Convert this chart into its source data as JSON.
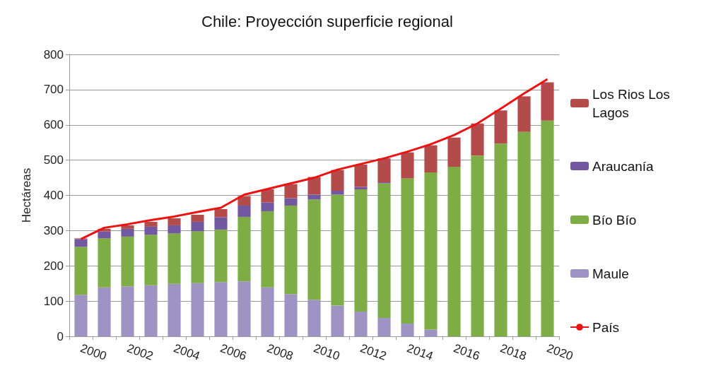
{
  "chart_data": {
    "type": "bar",
    "title": "Chile: Proyección superficie regional",
    "ylabel": "Hectáreas",
    "categories": [
      "2000",
      null,
      "2002",
      null,
      "2004",
      null,
      "2006",
      null,
      "2008",
      null,
      "2010",
      null,
      "2012",
      null,
      "2014",
      null,
      "2016",
      null,
      "2018",
      null,
      "2020"
    ],
    "stacked": true,
    "ylim": [
      0,
      800
    ],
    "yticks": [
      0,
      100,
      200,
      300,
      400,
      500,
      600,
      700,
      800
    ],
    "grid": "y",
    "legend": "right",
    "series": [
      {
        "name": "Maule",
        "color": "#9f93c4",
        "values": [
          118,
          139,
          142,
          145,
          149,
          151,
          154,
          156,
          139,
          120,
          104,
          87,
          70,
          52,
          36,
          19,
          0,
          0,
          0,
          0,
          0
        ]
      },
      {
        "name": "Bío Bío",
        "color": "#7fad45",
        "values": [
          136,
          139,
          141,
          143,
          143,
          147,
          149,
          183,
          216,
          251,
          284,
          315,
          347,
          382,
          412,
          446,
          481,
          513,
          547,
          580,
          612
        ]
      },
      {
        "name": "Araucanía",
        "color": "#7158a0",
        "values": [
          22,
          20,
          22,
          23,
          23,
          27,
          35,
          32,
          25,
          21,
          14,
          11,
          7,
          3,
          0,
          0,
          0,
          0,
          0,
          0,
          0
        ]
      },
      {
        "name": "Los Rios Los Lagos",
        "color": "#b34b4a",
        "values": [
          2,
          7,
          10,
          14,
          20,
          20,
          23,
          27,
          37,
          40,
          50,
          59,
          63,
          68,
          74,
          77,
          83,
          91,
          94,
          101,
          109
        ]
      },
      {
        "name": "País",
        "type": "line",
        "color": "#ee1111",
        "values": [
          276,
          308,
          318,
          330,
          340,
          353,
          365,
          402,
          418,
          434,
          450,
          473,
          489,
          505,
          524,
          545,
          571,
          604,
          646,
          689,
          730
        ]
      }
    ]
  }
}
